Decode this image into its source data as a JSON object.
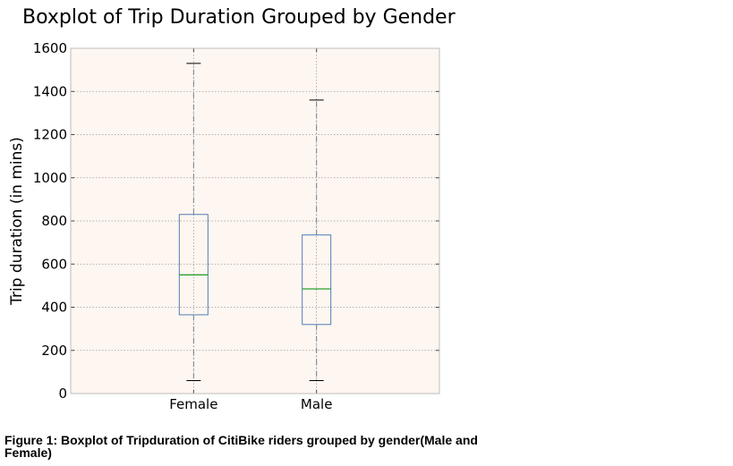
{
  "colors": {
    "plot_background": "#fef6f0",
    "box": "#4f7fb7",
    "median": "#2ca02c",
    "whisker": "#6f7f90",
    "cap": "#000000",
    "grid": "#9a9a9a",
    "spine": "#bdbdbd"
  },
  "chart_data": {
    "type": "boxplot",
    "title": "Boxplot of Trip Duration Grouped by Gender",
    "ylabel": "Trip duration (in mins)",
    "xlabel": "",
    "ylim": [
      0,
      1600
    ],
    "yticks": [
      0,
      200,
      400,
      600,
      800,
      1000,
      1200,
      1400,
      1600
    ],
    "grid": true,
    "categories": [
      "Female",
      "Male"
    ],
    "boxes": [
      {
        "category": "Female",
        "whisker_low": 60,
        "q1": 365,
        "median": 550,
        "q3": 830,
        "whisker_high": 1530
      },
      {
        "category": "Male",
        "whisker_low": 60,
        "q1": 320,
        "median": 485,
        "q3": 735,
        "whisker_high": 1360
      }
    ]
  },
  "caption": "Figure 1: Boxplot of Tripduration of CitiBike riders grouped by gender(Male and Female)"
}
